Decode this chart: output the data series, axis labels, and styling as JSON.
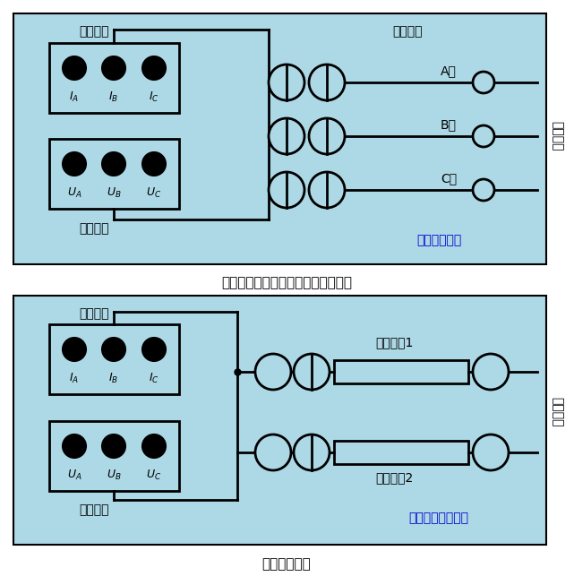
{
  "bg_color": "#add8e6",
  "line_color": "#000000",
  "blue_text_color": "#0000cd",
  "fig_bg": "#ffffff",
  "title1": "零序电容接线或者按照正序电容接线",
  "title2": "耦合电容接线",
  "label_yiqi": "仓器输出",
  "label_dianya": "电压测量",
  "label_bece": "被测线路",
  "label_A": "A相",
  "label_B": "B相",
  "label_C": "C相",
  "label_duan": "对端悬空",
  "label_zero": "零序电容接线",
  "label_bece1": "被测线路1",
  "label_bece2": "被测线路2",
  "label_coupling": "耦合电容测量接线"
}
